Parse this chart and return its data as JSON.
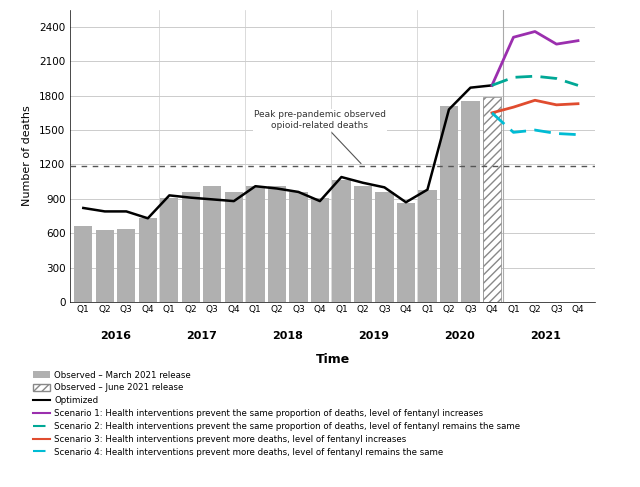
{
  "title": "",
  "xlabel": "Time",
  "ylabel": "Number of deaths",
  "ylim": [
    0,
    2550
  ],
  "yticks": [
    0,
    300,
    600,
    900,
    1200,
    1500,
    1800,
    2100,
    2400
  ],
  "background_color": "#ffffff",
  "dotted_line_y": 1190,
  "dotted_line_label": "Peak pre-pandemic observed\nopioid-related deaths",
  "quarters": [
    "Q1",
    "Q2",
    "Q3",
    "Q4",
    "Q1",
    "Q2",
    "Q3",
    "Q4",
    "Q1",
    "Q2",
    "Q3",
    "Q4",
    "Q1",
    "Q2",
    "Q3",
    "Q4",
    "Q1",
    "Q2",
    "Q3",
    "Q4",
    "Q1",
    "Q2",
    "Q3",
    "Q4"
  ],
  "year_positions": [
    1.5,
    5.5,
    9.5,
    13.5,
    17.5,
    21.5
  ],
  "year_names": [
    "2016",
    "2017",
    "2018",
    "2019",
    "2020",
    "2021"
  ],
  "bar_heights_march": [
    660,
    630,
    640,
    730,
    910,
    960,
    1010,
    960,
    1010,
    1010,
    960,
    910,
    1060,
    1010,
    960,
    860,
    980,
    1710,
    1750,
    1780,
    0,
    0,
    0,
    0
  ],
  "bar_heights_june": [
    0,
    0,
    0,
    0,
    0,
    0,
    0,
    0,
    0,
    0,
    0,
    0,
    0,
    0,
    0,
    0,
    0,
    0,
    0,
    1790,
    0,
    0,
    0,
    0
  ],
  "optimized_line": [
    820,
    790,
    790,
    730,
    930,
    910,
    895,
    880,
    1010,
    990,
    960,
    880,
    1090,
    1040,
    1000,
    870,
    980,
    1680,
    1870,
    1890,
    null,
    null,
    null,
    null
  ],
  "scenario1_x": [
    19,
    20,
    21,
    22,
    23
  ],
  "scenario1_y": [
    1890,
    2310,
    2360,
    2250,
    2280
  ],
  "scenario2_x": [
    19,
    20,
    21,
    22,
    23
  ],
  "scenario2_y": [
    1890,
    1960,
    1970,
    1950,
    1890
  ],
  "scenario3_x": [
    19,
    20,
    21,
    22,
    23
  ],
  "scenario3_y": [
    1650,
    1700,
    1760,
    1720,
    1730
  ],
  "scenario4_x": [
    19,
    20,
    21,
    22,
    23
  ],
  "scenario4_y": [
    1650,
    1480,
    1500,
    1470,
    1460
  ],
  "color_bar_march": "#b0b0b0",
  "color_optimized": "#000000",
  "color_scenario1": "#9b2fae",
  "color_scenario2": "#00a896",
  "color_scenario3": "#e04c2f",
  "color_scenario4": "#00bcd4",
  "grid_color": "#cccccc",
  "legend_labels": [
    "Observed – March 2021 release",
    "Observed – June 2021 release",
    "Optimized",
    "Scenario 1: Health interventions prevent the same proportion of deaths, level of fentanyl increases",
    "Scenario 2: Health interventions prevent the same proportion of deaths, level of fentanyl remains the same",
    "Scenario 3: Health interventions prevent more deaths, level of fentanyl increases",
    "Scenario 4: Health interventions prevent more deaths, level of fentanyl remains the same"
  ]
}
